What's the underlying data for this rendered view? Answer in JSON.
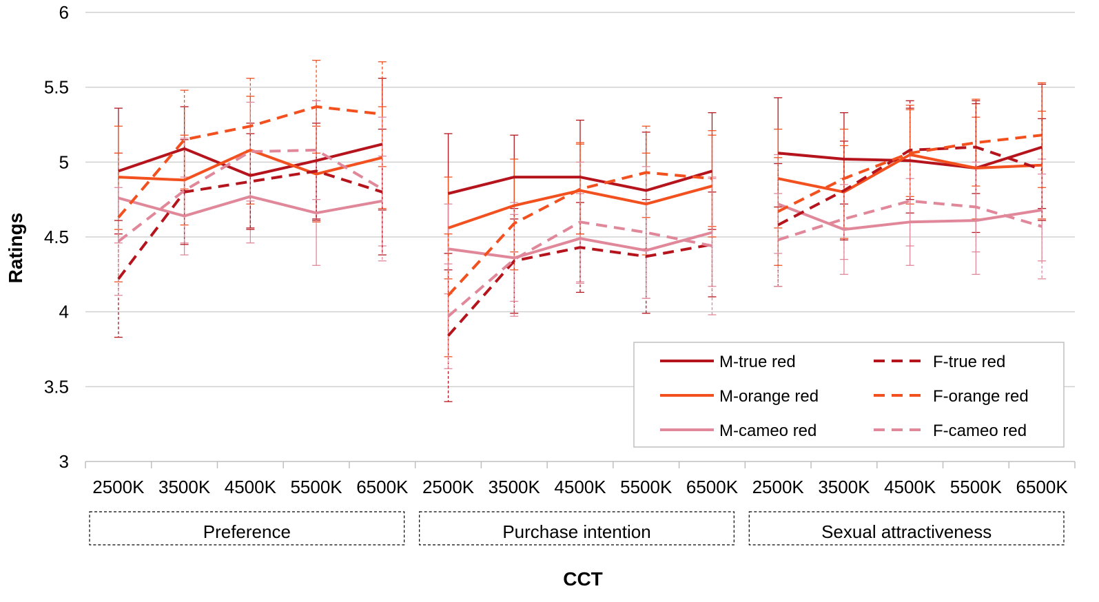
{
  "chart_data": {
    "type": "line",
    "title": "",
    "xlabel": "CCT",
    "ylabel": "Ratings",
    "ylim": [
      3,
      6
    ],
    "yticks": [
      "3",
      "3.5",
      "4",
      "4.5",
      "5",
      "5.5",
      "6"
    ],
    "grid": true,
    "legend_position": "bottom-right",
    "groups": [
      "Preference",
      "Purchase intention",
      "Sexual attractiveness"
    ],
    "categories": [
      "2500K",
      "3500K",
      "4500K",
      "5500K",
      "6500K"
    ],
    "series": [
      {
        "name": "M-true red",
        "color": "#b5141c",
        "style": "solid",
        "values": [
          [
            4.94,
            5.09,
            4.91,
            5.01,
            5.12
          ],
          [
            4.79,
            4.9,
            4.9,
            4.81,
            4.94
          ],
          [
            5.06,
            5.02,
            5.01,
            4.96,
            5.1
          ]
        ],
        "err_low": [
          [
            4.52,
            4.81,
            4.56,
            4.61,
            4.68
          ],
          [
            4.39,
            4.62,
            4.52,
            4.42,
            4.55
          ],
          [
            4.7,
            4.72,
            4.66,
            4.53,
            4.69
          ]
        ],
        "err_high": [
          [
            5.36,
            5.37,
            5.26,
            5.41,
            5.56
          ],
          [
            5.19,
            5.18,
            5.28,
            5.2,
            5.33
          ],
          [
            5.43,
            5.33,
            5.36,
            5.39,
            5.52
          ]
        ]
      },
      {
        "name": "M-orange red",
        "color": "#f2501e",
        "style": "solid",
        "values": [
          [
            4.9,
            4.88,
            5.08,
            4.92,
            5.03
          ],
          [
            4.56,
            4.71,
            4.81,
            4.72,
            4.84
          ],
          [
            4.89,
            4.8,
            5.05,
            4.96,
            4.98
          ]
        ],
        "err_low": [
          [
            4.55,
            4.58,
            4.72,
            4.6,
            4.69
          ],
          [
            4.22,
            4.4,
            4.49,
            4.38,
            4.5
          ],
          [
            4.56,
            4.49,
            4.72,
            4.62,
            4.62
          ]
        ],
        "err_high": [
          [
            5.24,
            5.18,
            5.44,
            5.24,
            5.37
          ],
          [
            4.9,
            5.02,
            5.13,
            5.06,
            5.18
          ],
          [
            5.22,
            5.11,
            5.38,
            5.3,
            5.34
          ]
        ]
      },
      {
        "name": "M-cameo red",
        "color": "#e0889a",
        "style": "solid",
        "values": [
          [
            4.76,
            4.64,
            4.77,
            4.66,
            4.74
          ],
          [
            4.42,
            4.36,
            4.49,
            4.41,
            4.53
          ],
          [
            4.72,
            4.55,
            4.6,
            4.61,
            4.68
          ]
        ],
        "err_low": [
          [
            4.46,
            4.38,
            4.46,
            4.31,
            4.44
          ],
          [
            4.12,
            4.07,
            4.19,
            4.09,
            4.17
          ],
          [
            4.39,
            4.25,
            4.31,
            4.25,
            4.34
          ]
        ],
        "err_high": [
          [
            5.06,
            4.9,
            5.08,
            5.01,
            5.04
          ],
          [
            4.72,
            4.65,
            4.79,
            4.73,
            4.89
          ],
          [
            5.05,
            4.85,
            4.89,
            4.97,
            5.02
          ]
        ]
      },
      {
        "name": "F-true red",
        "color": "#b5141c",
        "style": "dashed",
        "values": [
          [
            4.22,
            4.8,
            4.87,
            4.94,
            4.8
          ],
          [
            3.84,
            4.34,
            4.43,
            4.37,
            4.45
          ],
          [
            4.58,
            4.81,
            5.08,
            5.1,
            4.95
          ]
        ],
        "err_low": [
          [
            3.83,
            4.45,
            4.55,
            4.62,
            4.38
          ],
          [
            3.4,
            3.99,
            4.13,
            3.99,
            4.1
          ],
          [
            4.17,
            4.48,
            4.75,
            4.79,
            4.61
          ]
        ],
        "err_high": [
          [
            4.61,
            5.15,
            5.19,
            5.26,
            5.22
          ],
          [
            4.28,
            4.69,
            4.73,
            4.75,
            4.8
          ],
          [
            4.99,
            5.14,
            5.41,
            5.41,
            5.29
          ]
        ]
      },
      {
        "name": "F-orange red",
        "color": "#f2501e",
        "style": "dashed",
        "values": [
          [
            4.63,
            5.15,
            5.24,
            5.37,
            5.32
          ],
          [
            4.11,
            4.59,
            4.82,
            4.93,
            4.89
          ],
          [
            4.67,
            4.89,
            5.06,
            5.13,
            5.18
          ]
        ],
        "err_low": [
          [
            4.2,
            4.82,
            4.92,
            5.06,
            4.97
          ],
          [
            3.7,
            4.28,
            4.52,
            4.63,
            4.57
          ],
          [
            4.31,
            4.56,
            4.77,
            4.84,
            4.83
          ]
        ],
        "err_high": [
          [
            5.06,
            5.48,
            5.56,
            5.68,
            5.67
          ],
          [
            4.52,
            4.9,
            5.12,
            5.24,
            5.21
          ],
          [
            5.03,
            5.22,
            5.35,
            5.42,
            5.53
          ]
        ]
      },
      {
        "name": "F-cameo red",
        "color": "#e0889a",
        "style": "dashed",
        "values": [
          [
            4.47,
            4.81,
            5.07,
            5.08,
            4.82
          ],
          [
            3.97,
            4.35,
            4.6,
            4.53,
            4.44
          ],
          [
            4.48,
            4.62,
            4.74,
            4.7,
            4.57
          ]
        ],
        "err_low": [
          [
            4.11,
            4.46,
            4.74,
            4.75,
            4.34
          ],
          [
            3.62,
            3.97,
            4.2,
            4.09,
            3.98
          ],
          [
            4.17,
            4.35,
            4.44,
            4.4,
            4.22
          ]
        ],
        "err_high": [
          [
            4.83,
            5.16,
            5.4,
            5.41,
            5.3
          ],
          [
            4.32,
            4.73,
            5.0,
            4.97,
            4.9
          ],
          [
            4.79,
            4.89,
            5.04,
            5.0,
            4.92
          ]
        ]
      }
    ]
  }
}
